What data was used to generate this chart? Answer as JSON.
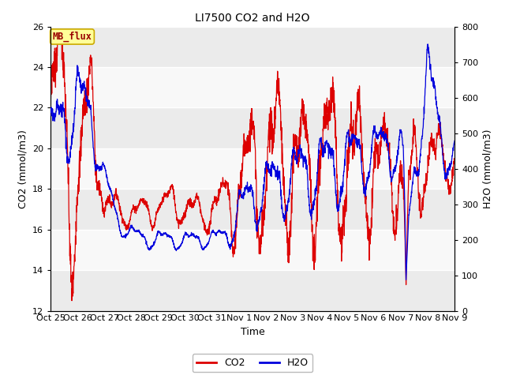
{
  "title": "LI7500 CO2 and H2O",
  "xlabel": "Time",
  "ylabel_left": "CO2 (mmol/m3)",
  "ylabel_right": "H2O (mmol/m3)",
  "ylim_left": [
    12,
    26
  ],
  "ylim_right": [
    0,
    800
  ],
  "yticks_left": [
    12,
    14,
    16,
    18,
    20,
    22,
    24,
    26
  ],
  "yticks_right": [
    0,
    100,
    200,
    300,
    400,
    500,
    600,
    700,
    800
  ],
  "fig_bg_color": "#ffffff",
  "plot_bg_light": "#f0f0f0",
  "plot_bg_dark": "#e0e0e0",
  "co2_color": "#dd0000",
  "h2o_color": "#0000dd",
  "annotation_text": "MB_flux",
  "annotation_bg": "#ffff99",
  "annotation_border": "#ccaa00",
  "x_tick_labels": [
    "Oct 25",
    "Oct 26",
    "Oct 27",
    "Oct 28",
    "Oct 29",
    "Oct 30",
    "Oct 31",
    "Nov 1",
    "Nov 2",
    "Nov 3",
    "Nov 4",
    "Nov 5",
    "Nov 6",
    "Nov 7",
    "Nov 8",
    "Nov 9"
  ],
  "num_days": 15
}
